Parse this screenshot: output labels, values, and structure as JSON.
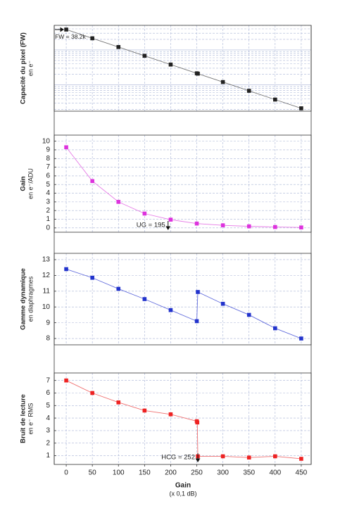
{
  "chart_data": [
    {
      "type": "line",
      "y_label": "Capacité du pixel (FW)",
      "y_sublabel": "en e⁻",
      "log": true,
      "grid": true,
      "color": "#222222",
      "line_color": "#777777",
      "x": [
        0,
        50,
        100,
        150,
        200,
        250,
        252,
        300,
        350,
        400,
        450
      ],
      "series": [
        {
          "values": [
            38200,
            21500,
            12100,
            6800,
            3820,
            2150,
            2100,
            1210,
            680,
            382,
            215
          ]
        }
      ],
      "ylim": [
        178,
        50400
      ],
      "annotation": {
        "text": "FW = 38.2k"
      }
    },
    {
      "type": "line",
      "y_label": "Gain",
      "y_sublabel": "en e⁻/ADU",
      "log": false,
      "grid": true,
      "color": "#dd33dd",
      "line_color": "#e67be6",
      "x": [
        0,
        50,
        100,
        150,
        200,
        250,
        300,
        350,
        400,
        450
      ],
      "series": [
        {
          "values": [
            9.3,
            5.4,
            3.0,
            1.65,
            0.95,
            0.5,
            0.3,
            0.18,
            0.1,
            0.05
          ]
        }
      ],
      "ylim": [
        -0.5,
        10.7
      ],
      "yticks": [
        0,
        1,
        2,
        3,
        4,
        5,
        6,
        7,
        8,
        9,
        10
      ],
      "annotation": {
        "text": "UG = 195",
        "x": 195
      }
    },
    {
      "type": "line",
      "y_label": "Gamme dynamique",
      "y_sublabel": "en diaphragmes",
      "log": false,
      "grid": true,
      "color": "#2233cc",
      "line_color": "#6670dd",
      "x": [
        0,
        50,
        100,
        150,
        200,
        250,
        252,
        300,
        350,
        400,
        450
      ],
      "series": [
        {
          "values": [
            12.4,
            11.85,
            11.15,
            10.5,
            9.8,
            9.1,
            10.95,
            10.2,
            9.5,
            8.65,
            8.0
          ]
        }
      ],
      "ylim": [
        7.6,
        13.4
      ],
      "yticks": [
        8,
        9,
        10,
        11,
        12,
        13
      ]
    },
    {
      "type": "line",
      "y_label": "Bruit de lecture",
      "y_sublabel": "en e⁻ RMS",
      "log": false,
      "grid": true,
      "color": "#ee2222",
      "line_color": "#f07070",
      "x": [
        0,
        50,
        100,
        150,
        200,
        250,
        251,
        252,
        300,
        350,
        400,
        450
      ],
      "series": [
        {
          "values": [
            7.0,
            6.0,
            5.25,
            4.6,
            4.3,
            3.75,
            3.65,
            0.95,
            0.95,
            0.85,
            0.95,
            0.75
          ]
        }
      ],
      "ylim": [
        0.3,
        7.6
      ],
      "yticks": [
        1,
        2,
        3,
        4,
        5,
        6,
        7
      ],
      "annotation": {
        "text": "HCG = 252",
        "x": 252
      },
      "xlim": [
        -23,
        469
      ],
      "xticks": [
        0,
        50,
        100,
        150,
        200,
        250,
        300,
        350,
        400,
        450
      ],
      "x_label": "Gain",
      "x_sublabel": "(x 0,1 dB)"
    }
  ]
}
